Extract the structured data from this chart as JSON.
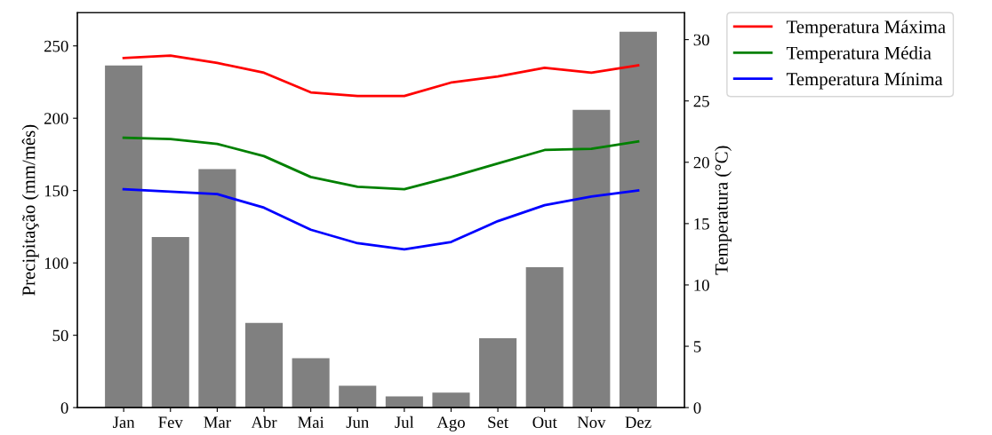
{
  "chart_data": {
    "type": "bar",
    "ylabel": "Precipitação (mm/mês)",
    "y2label": "Temperatura (°C)",
    "categories": [
      "Jan",
      "Fev",
      "Mar",
      "Abr",
      "Mai",
      "Jun",
      "Jul",
      "Ago",
      "Set",
      "Out",
      "Nov",
      "Dez"
    ],
    "series": [
      {
        "color": "#808080",
        "values": [
          236.4,
          117.9,
          164.8,
          58.6,
          34.2,
          15.1,
          7.7,
          10.3,
          47.9,
          97,
          205.8,
          259.8
        ]
      },
      {
        "type": "line",
        "axis": "y2",
        "name": "Temperatura Máxima",
        "color": "#ff0000",
        "values": [
          28.5,
          28.7,
          28.1,
          27.3,
          25.7,
          25.4,
          25.4,
          26.5,
          27.0,
          27.7,
          27.3,
          27.9
        ]
      },
      {
        "type": "line",
        "axis": "y2",
        "name": "Temperatura Média",
        "color": "#008000",
        "values": [
          22.0,
          21.9,
          21.5,
          20.5,
          18.8,
          18.0,
          17.8,
          18.8,
          19.9,
          21.0,
          21.1,
          21.7
        ]
      },
      {
        "type": "line",
        "axis": "y2",
        "name": "Temperatura Mínima",
        "color": "#0000ff",
        "values": [
          17.8,
          17.6,
          17.4,
          16.3,
          14.5,
          13.4,
          12.9,
          13.5,
          15.2,
          16.5,
          17.2,
          17.7
        ]
      }
    ],
    "ylim": [
      0,
      273
    ],
    "yticks": [
      0,
      50,
      100,
      150,
      200,
      250
    ],
    "y2lim": [
      0,
      32.2
    ],
    "y2ticks": [
      0,
      5,
      10,
      15,
      20,
      25,
      30
    ],
    "legend": "top right",
    "grid": false
  }
}
